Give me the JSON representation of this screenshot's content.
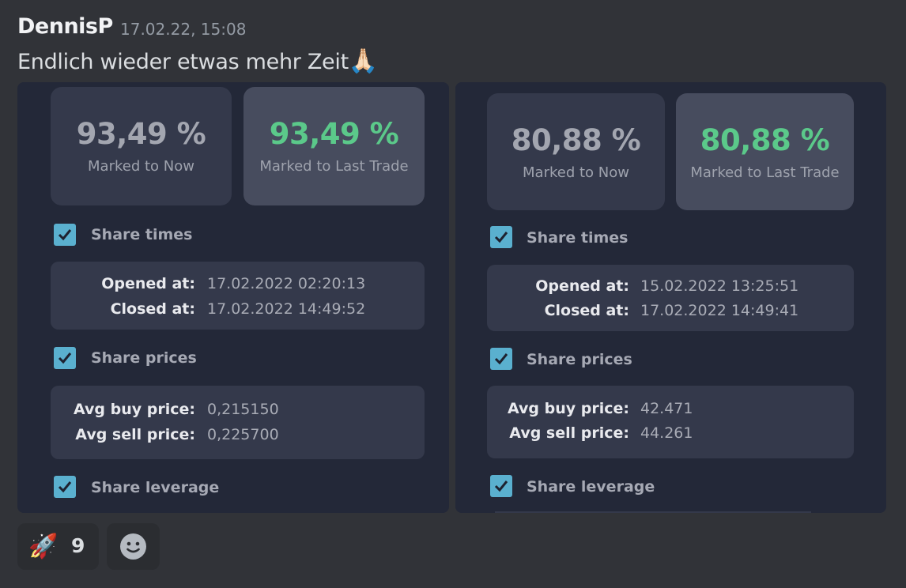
{
  "message": {
    "author": "DennisP",
    "timestamp": "17.02.22, 15:08",
    "text": "Endlich wieder etwas mehr Zeit",
    "text_emoji": "🙏🏻"
  },
  "cards": [
    {
      "marked_now_value": "93,49 %",
      "marked_now_label": "Marked to Now",
      "marked_last_value": "93,49 %",
      "marked_last_label": "Marked to Last Trade",
      "share_times_label": "Share times",
      "opened_label": "Opened at:",
      "opened_value": "17.02.2022 02:20:13",
      "closed_label": "Closed at:",
      "closed_value": "17.02.2022 14:49:52",
      "share_prices_label": "Share prices",
      "avg_buy_label": "Avg buy price:",
      "avg_buy_value": "0,215150",
      "avg_sell_label": "Avg sell price:",
      "avg_sell_value": "0,225700",
      "share_leverage_label": "Share leverage"
    },
    {
      "marked_now_value": "80,88 %",
      "marked_now_label": "Marked to Now",
      "marked_last_value": "80,88 %",
      "marked_last_label": "Marked to Last Trade",
      "share_times_label": "Share times",
      "opened_label": "Opened at:",
      "opened_value": "15.02.2022 13:25:51",
      "closed_label": "Closed at:",
      "closed_value": "17.02.2022 14:49:41",
      "share_prices_label": "Share prices",
      "avg_buy_label": "Avg buy price:",
      "avg_buy_value": "42.471",
      "avg_sell_label": "Avg sell price:",
      "avg_sell_value": "44.261",
      "share_leverage_label": "Share leverage"
    }
  ],
  "reactions": [
    {
      "emoji": "🚀",
      "count": "9"
    },
    {
      "icon": "add-reaction-icon"
    }
  ],
  "colors": {
    "background": "#313338",
    "card": "#232838",
    "tile": "#34394b",
    "green": "#5bc98a",
    "checkbox": "#5ab0cf"
  }
}
